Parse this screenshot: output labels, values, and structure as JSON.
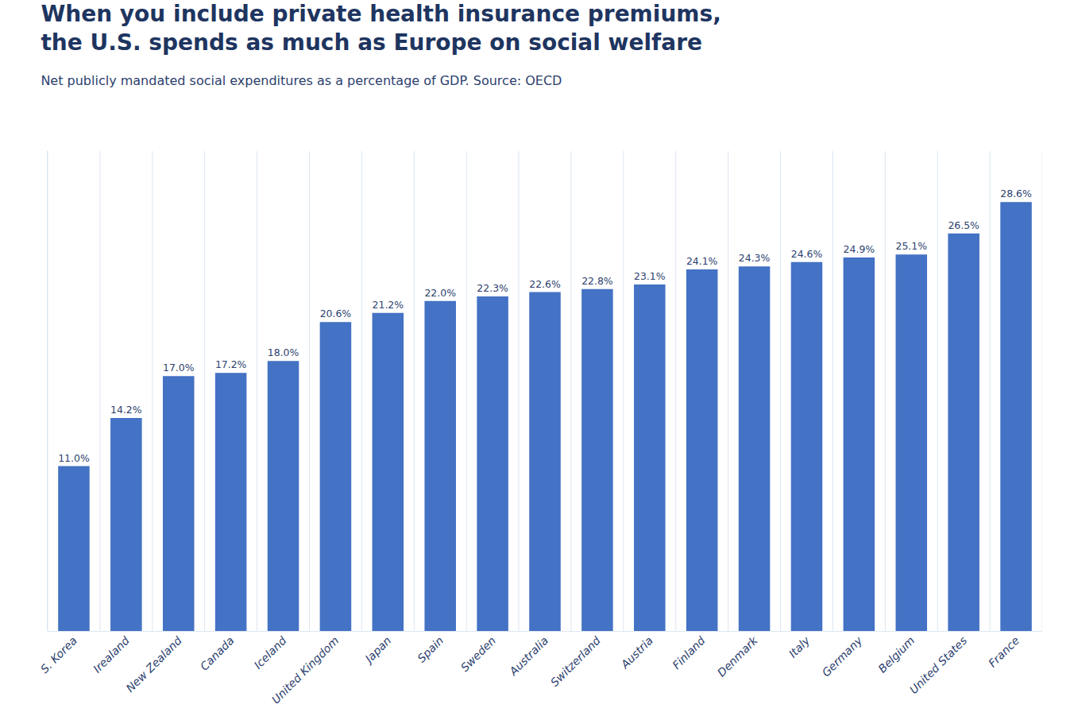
{
  "chart_data": {
    "type": "bar",
    "title": "When you include private health insurance premiums,\nthe U.S. spends as much as Europe on social welfare",
    "subtitle": "Net publicly mandated social expenditures as a percentage of GDP. Source: OECD",
    "categories": [
      "S. Korea",
      "Irealand",
      "New Zealand",
      "Canada",
      "Iceland",
      "United Kingdom",
      "Japan",
      "Spain",
      "Sweden",
      "Australia",
      "Switzerland",
      "Austria",
      "Finland",
      "Denmark",
      "Italy",
      "Germany",
      "Belgium",
      "United States",
      "France"
    ],
    "values": [
      11.0,
      14.2,
      17.0,
      17.2,
      18.0,
      20.6,
      21.2,
      22.0,
      22.3,
      22.6,
      22.8,
      23.1,
      24.1,
      24.3,
      24.6,
      24.9,
      25.1,
      26.5,
      28.6
    ],
    "value_labels": [
      "11.0%",
      "14.2%",
      "17.0%",
      "17.2%",
      "18.0%",
      "20.6%",
      "21.2%",
      "22.0%",
      "22.3%",
      "22.6%",
      "22.8%",
      "23.1%",
      "24.1%",
      "24.3%",
      "24.6%",
      "24.9%",
      "25.1%",
      "26.5%",
      "28.6%"
    ],
    "color": "#4472C4",
    "ylim": [
      0,
      32
    ],
    "data_labels": true,
    "tick_labels": "x",
    "grid": "x"
  }
}
